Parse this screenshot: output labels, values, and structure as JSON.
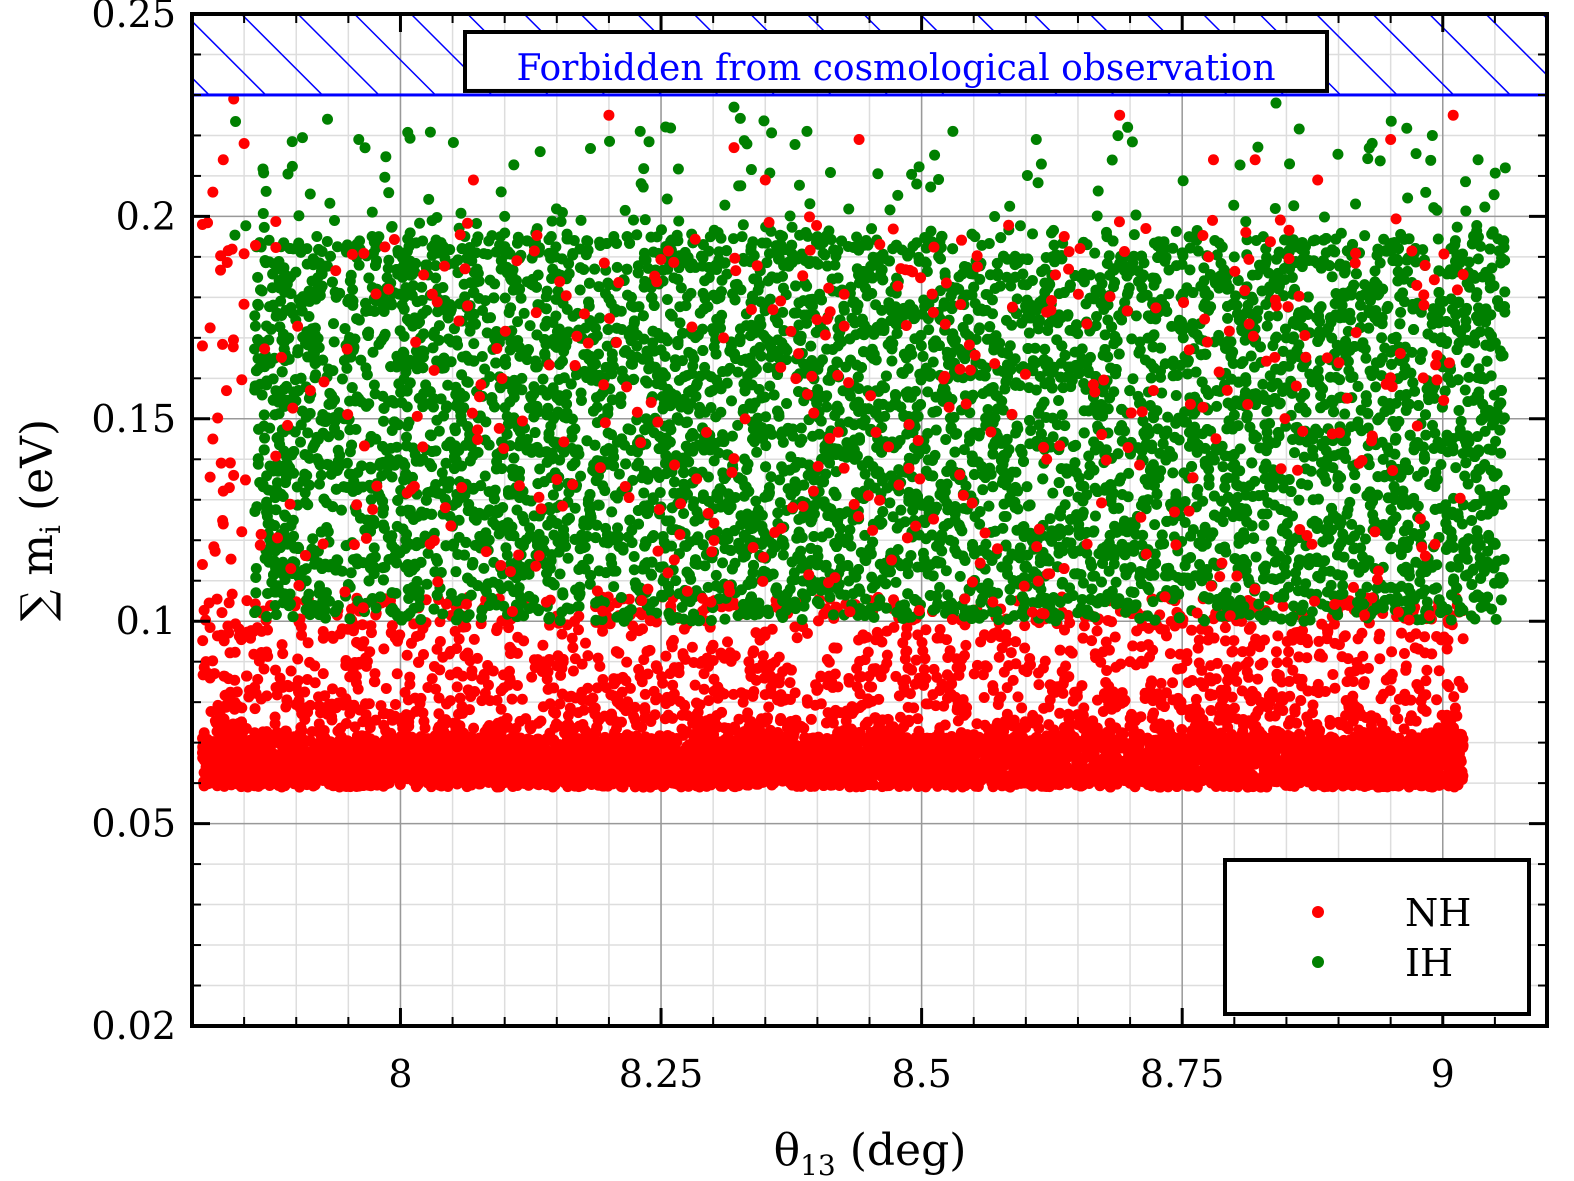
{
  "chart_data": {
    "type": "scatter",
    "xlabel": "θ13 (deg)",
    "xlabel_main": "θ",
    "xlabel_sub": "13",
    "xlabel_unit": " (deg)",
    "ylabel_main": "∑ m",
    "ylabel_sub": "i",
    "ylabel_unit": " (eV)",
    "xlim": [
      7.8,
      9.1
    ],
    "ylim": [
      0.02,
      0.25
    ],
    "x_ticks": [
      8,
      8.25,
      8.5,
      8.75,
      9
    ],
    "x_tick_labels": [
      "8",
      "8.25",
      "8.5",
      "8.75",
      "9"
    ],
    "y_ticks": [
      0.02,
      0.05,
      0.1,
      0.15,
      0.2,
      0.25
    ],
    "y_tick_labels": [
      "0.02",
      "0.05",
      "0.1",
      "0.15",
      "0.2",
      "0.25"
    ],
    "grid": true,
    "forbidden_region": {
      "y_from": 0.23,
      "y_to": 0.25,
      "label": "Forbidden from cosmological observation",
      "color": "#0000ff"
    },
    "legend_position": "bottom-right",
    "series": [
      {
        "name": "NH",
        "color": "#ff0000",
        "x_range": [
          7.81,
          9.02
        ],
        "y_dense_band": [
          0.059,
          0.071
        ],
        "y_range": [
          0.059,
          0.229
        ],
        "points": [
          [
            7.81,
            0.198
          ],
          [
            7.82,
            0.206
          ],
          [
            7.83,
            0.214
          ],
          [
            7.84,
            0.229
          ],
          [
            7.85,
            0.218
          ],
          [
            7.81,
            0.168
          ],
          [
            7.82,
            0.145
          ],
          [
            7.83,
            0.124
          ],
          [
            7.81,
            0.114
          ],
          [
            8.2,
            0.225
          ],
          [
            8.32,
            0.217
          ],
          [
            8.69,
            0.225
          ],
          [
            9.01,
            0.225
          ],
          [
            8.78,
            0.214
          ],
          [
            8.82,
            0.214
          ],
          [
            8.95,
            0.219
          ],
          [
            8.44,
            0.219
          ],
          [
            8.35,
            0.209
          ],
          [
            8.88,
            0.209
          ],
          [
            8.07,
            0.209
          ],
          [
            8.31,
            0.17
          ],
          [
            8.62,
            0.14
          ],
          [
            8.15,
            0.135
          ],
          [
            8.45,
            0.08
          ],
          [
            8.7,
            0.09
          ],
          [
            8.9,
            0.075
          ]
        ]
      },
      {
        "name": "IH",
        "color": "#008000",
        "x_range": [
          7.84,
          9.06
        ],
        "y_dense_band": [
          0.1,
          0.195
        ],
        "y_range": [
          0.099,
          0.228
        ],
        "points": [
          [
            7.93,
            0.224
          ],
          [
            8.32,
            0.227
          ],
          [
            8.84,
            0.228
          ],
          [
            8.39,
            0.221
          ],
          [
            8.53,
            0.221
          ],
          [
            8.99,
            0.22
          ],
          [
            8.61,
            0.219
          ],
          [
            7.96,
            0.219
          ],
          [
            9.06,
            0.212
          ],
          [
            8.23,
            0.221
          ],
          [
            8.1,
            0.2
          ],
          [
            8.4,
            0.195
          ],
          [
            8.8,
            0.19
          ]
        ]
      }
    ]
  }
}
